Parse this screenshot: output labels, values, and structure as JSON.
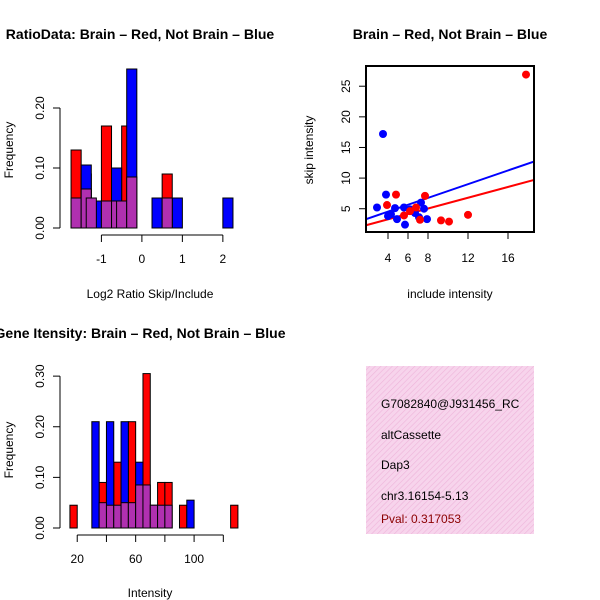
{
  "chart_data": [
    {
      "type": "bar",
      "title": "RatioData: Brain – Red, Not Brain – Blue",
      "xlabel": "Log2 Ratio Skip/Include",
      "ylabel": "Frequency",
      "xlim": [
        -1.85,
        2.3
      ],
      "ylim": [
        0,
        0.27
      ],
      "xticks": [
        "-1",
        "0",
        "1",
        "2"
      ],
      "xtick_values": [
        -1,
        0,
        1,
        2
      ],
      "yticks": [
        "0.00",
        "0.10",
        "0.20"
      ],
      "ytick_values": [
        0,
        0.1,
        0.2
      ],
      "bin_width": 0.25,
      "series": [
        {
          "name": "Brain",
          "color": "#ff0000",
          "bins": [
            [
              -1.75,
              0.13
            ],
            [
              -1.5,
              0.09
            ],
            [
              -1.0,
              0.17
            ],
            [
              -0.5,
              0.17
            ],
            [
              0.5,
              0.09
            ]
          ]
        },
        {
          "name": "Not Brain",
          "color": "#0000ff",
          "bins": [
            [
              -1.5,
              0.105
            ],
            [
              -1.25,
              0.045
            ],
            [
              -0.75,
              0.1
            ],
            [
              -0.375,
              0.265
            ],
            [
              0.25,
              0.05
            ],
            [
              0.75,
              0.05
            ],
            [
              2.0,
              0.05
            ]
          ]
        },
        {
          "name": "Overlap",
          "color": "#b030b0",
          "bins": [
            [
              -1.75,
              0.05
            ],
            [
              -1.5,
              0.065
            ],
            [
              -1.375,
              0.05
            ],
            [
              -1.0,
              0.045
            ],
            [
              -0.75,
              0.045
            ],
            [
              -0.625,
              0.045
            ],
            [
              -0.375,
              0.085
            ],
            [
              0.5,
              0.05
            ]
          ]
        }
      ]
    },
    {
      "type": "scatter",
      "title": "Brain – Red, Not Brain – Blue",
      "xlabel": "include intensity",
      "ylabel": "skip intensity",
      "xlim": [
        1.8,
        18.6
      ],
      "ylim": [
        1.2,
        28.3
      ],
      "xticks": [
        "4",
        "8",
        "12",
        "16"
      ],
      "xtick_values": [
        4,
        8,
        12,
        16
      ],
      "xticks_minor": [
        6
      ],
      "yticks": [
        "5",
        "10",
        "15",
        "20",
        "25"
      ],
      "ytick_values": [
        5,
        10,
        15,
        20,
        25
      ],
      "series": [
        {
          "name": "Brain",
          "color": "#ff0000",
          "points": [
            [
              3.9,
              5.6
            ],
            [
              4.8,
              7.3
            ],
            [
              5.6,
              3.9
            ],
            [
              6.2,
              4.6
            ],
            [
              6.8,
              5.2
            ],
            [
              7.2,
              3.2
            ],
            [
              7.7,
              7.1
            ],
            [
              9.3,
              3.1
            ],
            [
              10.1,
              2.9
            ],
            [
              12.0,
              4.0
            ],
            [
              17.8,
              26.9
            ]
          ],
          "fit": [
            [
              1.8,
              2.3
            ],
            [
              18.6,
              9.7
            ]
          ]
        },
        {
          "name": "Not Brain",
          "color": "#0000ff",
          "points": [
            [
              2.9,
              5.2
            ],
            [
              3.5,
              17.2
            ],
            [
              3.8,
              7.3
            ],
            [
              4.0,
              3.8
            ],
            [
              4.3,
              4.1
            ],
            [
              4.7,
              5.1
            ],
            [
              4.9,
              3.3
            ],
            [
              5.6,
              5.2
            ],
            [
              5.7,
              2.4
            ],
            [
              6.2,
              4.9
            ],
            [
              6.7,
              4.3
            ],
            [
              7.1,
              3.6
            ],
            [
              7.3,
              6.0
            ],
            [
              7.6,
              5.0
            ],
            [
              7.9,
              3.3
            ]
          ],
          "fit": [
            [
              1.8,
              3.3
            ],
            [
              18.6,
              12.7
            ]
          ]
        }
      ]
    },
    {
      "type": "bar",
      "title": "Gene Itensity: Brain – Red, Not Brain – Blue",
      "xlabel": "Intensity",
      "ylabel": "Frequency",
      "xlim": [
        13,
        128
      ],
      "ylim": [
        0,
        0.32
      ],
      "xticks": [
        "20",
        "60",
        "100"
      ],
      "xtick_values": [
        20,
        60,
        100
      ],
      "xticks_minor": [
        40,
        80,
        120
      ],
      "yticks": [
        "0.00",
        "0.10",
        "0.20",
        "0.30"
      ],
      "ytick_values": [
        0,
        0.1,
        0.2,
        0.3
      ],
      "bin_width": 5,
      "series": [
        {
          "name": "Brain",
          "color": "#ff0000",
          "bins": [
            [
              15,
              0.045
            ],
            [
              35,
              0.09
            ],
            [
              45,
              0.13
            ],
            [
              55,
              0.21
            ],
            [
              65,
              0.305
            ],
            [
              75,
              0.09
            ],
            [
              80,
              0.09
            ],
            [
              90,
              0.045
            ],
            [
              125,
              0.045
            ]
          ]
        },
        {
          "name": "Not Brain",
          "color": "#0000ff",
          "bins": [
            [
              30,
              0.21
            ],
            [
              40,
              0.21
            ],
            [
              50,
              0.21
            ],
            [
              60,
              0.13
            ],
            [
              70,
              0.045
            ],
            [
              95,
              0.055
            ]
          ]
        },
        {
          "name": "Overlap",
          "color": "#b030b0",
          "bins": [
            [
              35,
              0.05
            ],
            [
              40,
              0.045
            ],
            [
              45,
              0.045
            ],
            [
              50,
              0.05
            ],
            [
              55,
              0.05
            ],
            [
              60,
              0.085
            ],
            [
              65,
              0.085
            ],
            [
              70,
              0.045
            ],
            [
              75,
              0.045
            ],
            [
              80,
              0.045
            ]
          ]
        }
      ]
    }
  ],
  "info_box": {
    "event_id": "G7082840@J931456_RC",
    "event_type": "altCassette",
    "gene": "Dap3",
    "location": "chr3.16154-5.13",
    "pval": "Pval: 0.317053",
    "pval_color": "#8b0000",
    "fill_color": "#f7d4ec",
    "hatch_color": "#eeb4da"
  }
}
